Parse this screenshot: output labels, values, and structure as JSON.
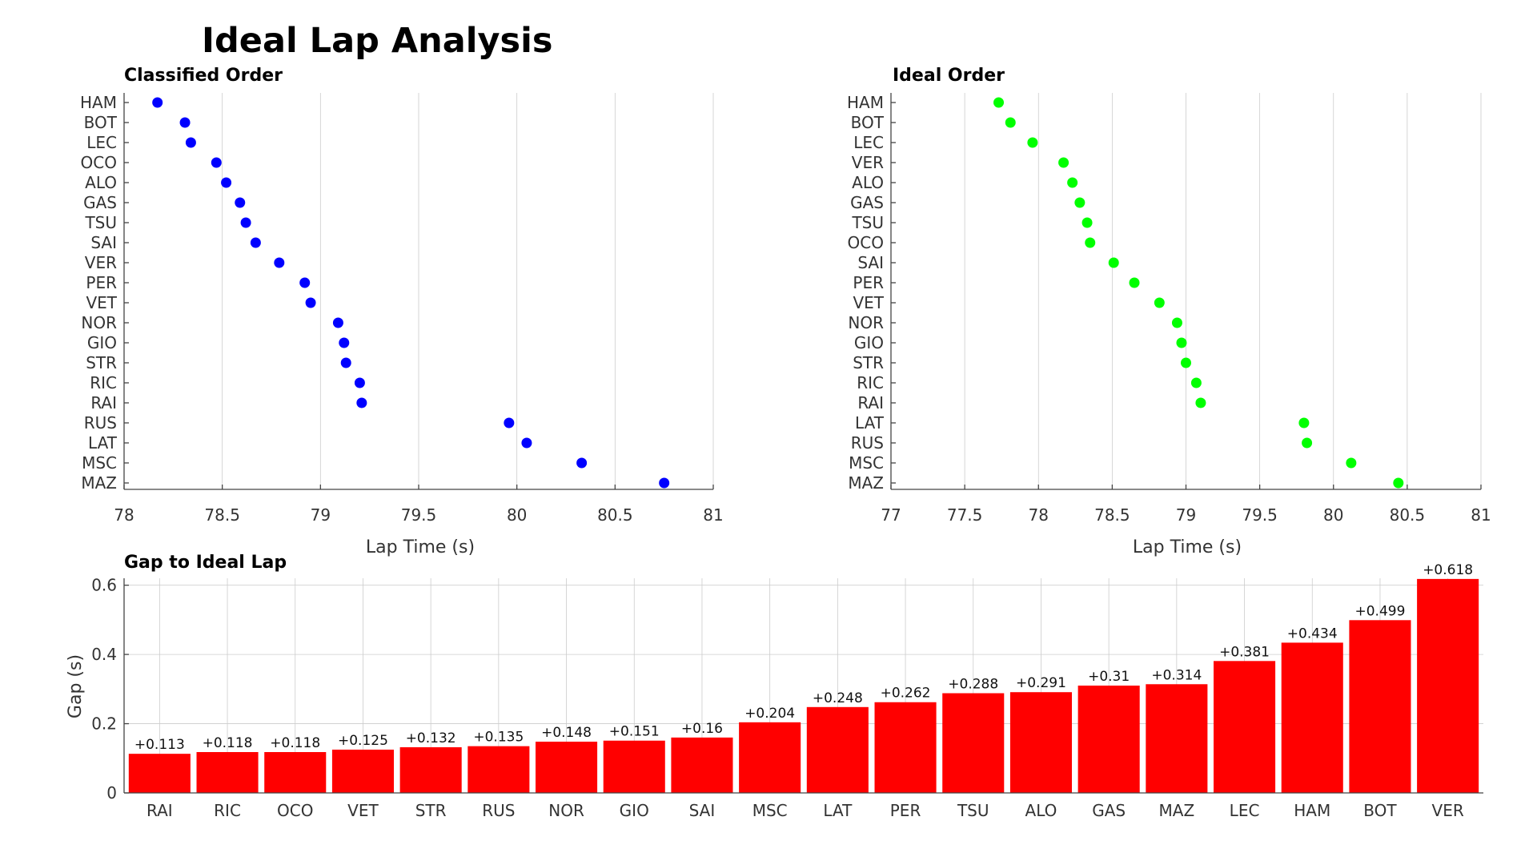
{
  "figure_title": "Ideal Lap Analysis",
  "colors": {
    "classified": "#0000ff",
    "ideal": "#00ff00",
    "gap": "#ff0000"
  },
  "chart_data": [
    {
      "type": "scatter",
      "title": "Classified Order",
      "xlabel": "Lap Time (s)",
      "ylabel": "",
      "xlim": [
        78,
        81
      ],
      "xticks": [
        "78",
        "78.5",
        "79",
        "79.5",
        "80",
        "80.5",
        "81"
      ],
      "xtick_values": [
        78,
        78.5,
        79,
        79.5,
        80,
        80.5,
        81
      ],
      "categories": [
        "HAM",
        "BOT",
        "LEC",
        "OCO",
        "ALO",
        "GAS",
        "TSU",
        "SAI",
        "VER",
        "PER",
        "VET",
        "NOR",
        "GIO",
        "STR",
        "RIC",
        "RAI",
        "RUS",
        "LAT",
        "MSC",
        "MAZ"
      ],
      "values": [
        78.17,
        78.31,
        78.34,
        78.47,
        78.52,
        78.59,
        78.62,
        78.67,
        78.79,
        78.92,
        78.95,
        79.09,
        79.12,
        79.13,
        79.2,
        79.21,
        79.96,
        80.05,
        80.33,
        80.75
      ],
      "grid": true
    },
    {
      "type": "scatter",
      "title": "Ideal Order",
      "xlabel": "Lap Time (s)",
      "ylabel": "",
      "xlim": [
        77,
        81
      ],
      "xticks": [
        "77",
        "77.5",
        "78",
        "78.5",
        "79",
        "79.5",
        "80",
        "80.5",
        "81"
      ],
      "xtick_values": [
        77,
        77.5,
        78,
        78.5,
        79,
        79.5,
        80,
        80.5,
        81
      ],
      "categories": [
        "HAM",
        "BOT",
        "LEC",
        "VER",
        "ALO",
        "GAS",
        "TSU",
        "OCO",
        "SAI",
        "PER",
        "VET",
        "NOR",
        "GIO",
        "STR",
        "RIC",
        "RAI",
        "LAT",
        "RUS",
        "MSC",
        "MAZ"
      ],
      "values": [
        77.73,
        77.81,
        77.96,
        78.17,
        78.23,
        78.28,
        78.33,
        78.35,
        78.51,
        78.65,
        78.82,
        78.94,
        78.97,
        79.0,
        79.07,
        79.1,
        79.8,
        79.82,
        80.12,
        80.44
      ],
      "grid": true
    },
    {
      "type": "bar",
      "title": "Gap to Ideal Lap",
      "xlabel": "",
      "ylabel": "Gap (s)",
      "ylim": [
        0,
        0.62
      ],
      "yticks": [
        "0",
        "0.2",
        "0.4",
        "0.6"
      ],
      "ytick_values": [
        0,
        0.2,
        0.4,
        0.6
      ],
      "categories": [
        "RAI",
        "RIC",
        "OCO",
        "VET",
        "STR",
        "RUS",
        "NOR",
        "GIO",
        "SAI",
        "MSC",
        "LAT",
        "PER",
        "TSU",
        "ALO",
        "GAS",
        "MAZ",
        "LEC",
        "HAM",
        "BOT",
        "VER"
      ],
      "values": [
        0.113,
        0.118,
        0.118,
        0.125,
        0.132,
        0.135,
        0.148,
        0.151,
        0.16,
        0.204,
        0.248,
        0.262,
        0.288,
        0.291,
        0.31,
        0.314,
        0.381,
        0.434,
        0.499,
        0.618
      ],
      "labels": [
        "+0.113",
        "+0.118",
        "+0.118",
        "+0.125",
        "+0.132",
        "+0.135",
        "+0.148",
        "+0.151",
        "+0.16",
        "+0.204",
        "+0.248",
        "+0.262",
        "+0.288",
        "+0.291",
        "+0.31",
        "+0.314",
        "+0.381",
        "+0.434",
        "+0.499",
        "+0.618"
      ],
      "grid": true
    }
  ]
}
